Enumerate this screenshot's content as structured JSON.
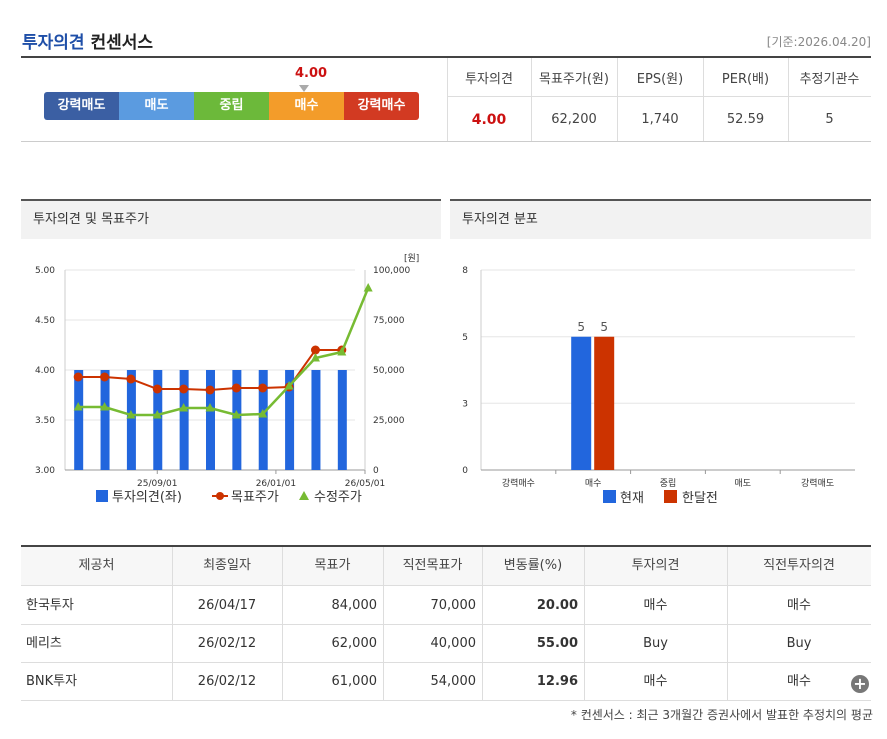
{
  "header": {
    "title_blue": "투자의견",
    "title_dark": "컨센서스",
    "base_date": "[기준:2026.04.20]"
  },
  "rating_bar": {
    "score_label": "4.00",
    "current_index": 3,
    "segments": [
      {
        "label": "강력매도",
        "color": "#3b5fa3"
      },
      {
        "label": "매도",
        "color": "#5b9be0"
      },
      {
        "label": "중립",
        "color": "#6cb93a"
      },
      {
        "label": "매수",
        "color": "#f39c2a"
      },
      {
        "label": "강력매수",
        "color": "#d23a22"
      }
    ]
  },
  "summary": {
    "headers": [
      "투자의견",
      "목표주가(원)",
      "EPS(원)",
      "PER(배)",
      "추정기관수"
    ],
    "values": [
      "4.00",
      "62,200",
      "1,740",
      "52.59",
      "5"
    ]
  },
  "left_panel": {
    "title": "투자의견 및 목표주가",
    "unit": "[원]"
  },
  "right_panel": {
    "title": "투자의견 분포"
  },
  "chart_data": [
    {
      "type": "bar+line",
      "title": "투자의견 및 목표주가",
      "x_tick_labels": [
        "25/09/01",
        "26/01/01",
        "26/05/01"
      ],
      "y_left": {
        "ticks": [
          "3.00",
          "3.50",
          "4.00",
          "4.50",
          "5.00"
        ],
        "range": [
          3,
          5
        ]
      },
      "y_right": {
        "ticks": [
          "0",
          "25,000",
          "50,000",
          "75,000",
          "100,000"
        ],
        "range": [
          0,
          100000
        ],
        "unit": "[원]"
      },
      "series": [
        {
          "name": "투자의견(좌)",
          "kind": "bar",
          "axis": "left",
          "color": "#2266dd",
          "values": [
            4.0,
            4.0,
            4.0,
            4.0,
            4.0,
            4.0,
            4.0,
            4.0,
            4.0,
            4.0,
            4.0
          ]
        },
        {
          "name": "목표주가",
          "kind": "line",
          "axis": "right",
          "color": "#cc3300",
          "values": [
            46500,
            46500,
            45500,
            40500,
            40500,
            40000,
            41000,
            41000,
            41500,
            60000,
            60000
          ]
        },
        {
          "name": "수정주가",
          "kind": "line",
          "axis": "right",
          "color": "#77bb33",
          "values": [
            31500,
            31500,
            27500,
            27500,
            31000,
            31000,
            27500,
            28000,
            42000,
            56000,
            59000,
            91000
          ]
        }
      ]
    },
    {
      "type": "bar",
      "title": "투자의견 분포",
      "categories": [
        "강력매수",
        "매수",
        "중립",
        "매도",
        "강력매도"
      ],
      "y_ticks": [
        "0",
        "3",
        "5",
        "8"
      ],
      "ylim": [
        0,
        8
      ],
      "series": [
        {
          "name": "현재",
          "color": "#2266dd",
          "values": [
            0,
            5,
            0,
            0,
            0
          ]
        },
        {
          "name": "한달전",
          "color": "#cc3300",
          "values": [
            0,
            5,
            0,
            0,
            0
          ]
        }
      ],
      "data_labels": [
        "5",
        "5"
      ]
    }
  ],
  "table": {
    "headers": [
      "제공처",
      "최종일자",
      "목표가",
      "직전목표가",
      "변동률(%)",
      "투자의견",
      "직전투자의견"
    ],
    "rows": [
      [
        "한국투자",
        "26/04/17",
        "84,000",
        "70,000",
        "20.00",
        "매수",
        "매수"
      ],
      [
        "메리츠",
        "26/02/12",
        "62,000",
        "40,000",
        "55.00",
        "Buy",
        "Buy"
      ],
      [
        "BNK투자",
        "26/02/12",
        "61,000",
        "54,000",
        "12.96",
        "매수",
        "매수"
      ]
    ]
  },
  "more_button": "+",
  "footnote": "* 컨센서스 : 최근 3개월간 증권사에서 발표한 추정치의 평균"
}
